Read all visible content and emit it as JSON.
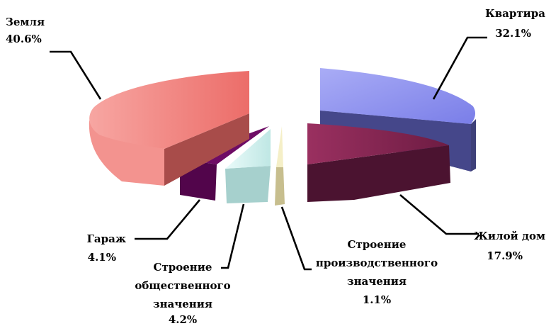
{
  "chart_data": {
    "type": "pie",
    "title": "",
    "slices": [
      {
        "key": "kvartira",
        "label": "Квартира",
        "percent": 32.1,
        "percent_label": "32.1%",
        "color": "#8b8ff0",
        "side_color": "#3d3f78"
      },
      {
        "key": "zhiloy_dom",
        "label": "Жилой дом",
        "percent": 17.9,
        "percent_label": "17.9%",
        "color": "#8b2855",
        "side_color": "#4a1230"
      },
      {
        "key": "stroenie_proizv",
        "label_lines": [
          "Строение",
          "производственного",
          "значения"
        ],
        "percent": 1.1,
        "percent_label": "1.1%",
        "color": "#f1ebc0",
        "side_color": "#bdb58a"
      },
      {
        "key": "stroenie_obshch",
        "label_lines": [
          "Строение",
          "общественного",
          "значения"
        ],
        "percent": 4.2,
        "percent_label": "4.2%",
        "color": "#d7f4f2",
        "side_color": "#8fb7b5"
      },
      {
        "key": "garazh",
        "label": "Гараж",
        "percent": 4.1,
        "percent_label": "4.1%",
        "color": "#6a0a62",
        "side_color": "#3a0536"
      },
      {
        "key": "zemlya",
        "label": "Земля",
        "percent": 40.6,
        "percent_label": "40.6%",
        "color": "#f07e7a",
        "side_color": "#a84a48"
      }
    ],
    "legend": "none"
  }
}
